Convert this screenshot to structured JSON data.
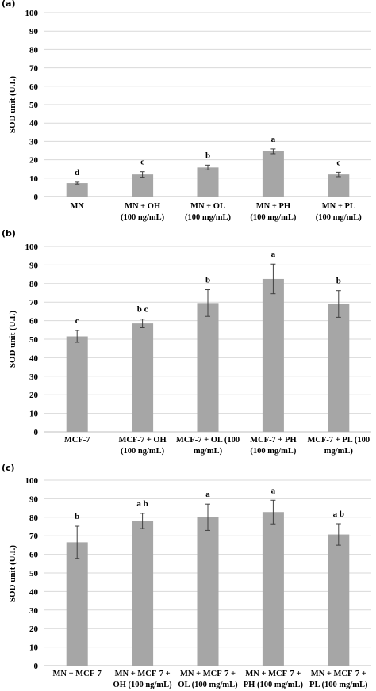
{
  "colors": {
    "bar": "#a6a6a6",
    "grid": "#d9d9d9",
    "error": "#404040",
    "text": "#000000"
  },
  "chart_data": [
    {
      "type": "bar",
      "panel_label": "(a)",
      "ylabel": "SOD unit  (U.I.)",
      "ylim": [
        0,
        100
      ],
      "yticks": [
        0,
        10,
        20,
        30,
        40,
        50,
        60,
        70,
        80,
        90,
        100
      ],
      "grid": true,
      "categories": [
        [
          "MN"
        ],
        [
          "MN + OH",
          "(100 ng/mL)"
        ],
        [
          "MN + OL",
          "(100 mg/mL)"
        ],
        [
          "MN + PH",
          "(100 mg/mL)"
        ],
        [
          "MN + PL",
          "(100 mg/mL)"
        ]
      ],
      "values": [
        7.3,
        12,
        15.8,
        24.6,
        12
      ],
      "errors": [
        0.5,
        1.5,
        1.3,
        1.3,
        1.2
      ],
      "significance": [
        "d",
        "c",
        "b",
        "a",
        "c"
      ]
    },
    {
      "type": "bar",
      "panel_label": "(b)",
      "ylabel": "SOD unit  (U.I.)",
      "ylim": [
        0,
        100
      ],
      "yticks": [
        0,
        10,
        20,
        30,
        40,
        50,
        60,
        70,
        80,
        90,
        100
      ],
      "grid": true,
      "categories": [
        [
          "MCF-7"
        ],
        [
          "MCF-7 + OH",
          "(100 ng/mL)"
        ],
        [
          "MCF-7 + OL (100",
          "mg/mL)"
        ],
        [
          "MCF-7 + PH",
          "(100 mg/mL)"
        ],
        [
          "MCF-7 + PL (100",
          "mg/mL)"
        ]
      ],
      "values": [
        51.5,
        58.5,
        69.5,
        82.5,
        69
      ],
      "errors": [
        3.2,
        2.3,
        7.2,
        8,
        7.2
      ],
      "significance": [
        "c",
        "b c",
        "b",
        "a",
        "b"
      ]
    },
    {
      "type": "bar",
      "panel_label": "(c)",
      "ylabel": "SOD unit  (U.I.)",
      "ylim": [
        0,
        100
      ],
      "yticks": [
        0,
        10,
        20,
        30,
        40,
        50,
        60,
        70,
        80,
        90,
        100
      ],
      "grid": true,
      "categories": [
        [
          "MN + MCF-7"
        ],
        [
          "MN + MCF-7 +",
          "OH (100 ng/mL)"
        ],
        [
          "MN + MCF-7 +",
          "OL (100 mg/mL)"
        ],
        [
          "MN + MCF-7 +",
          "PH (100 mg/mL)"
        ],
        [
          "MN + MCF-7 +",
          "PL (100 mg/mL)"
        ]
      ],
      "values": [
        66.5,
        78,
        80,
        82.8,
        70.7
      ],
      "errors": [
        8.7,
        4.1,
        7.1,
        6.4,
        5.8
      ],
      "significance": [
        "b",
        "a b",
        "a",
        "a",
        "a b"
      ]
    }
  ]
}
